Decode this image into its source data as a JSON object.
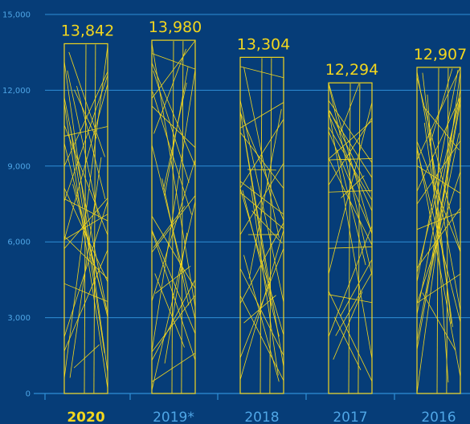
{
  "chart_data": {
    "type": "bar",
    "categories": [
      "2020",
      "2019*",
      "2018",
      "2017",
      "2016"
    ],
    "values": [
      13842,
      13980,
      13304,
      12294,
      12907
    ],
    "value_labels": [
      "13,842",
      "13,980",
      "13,304",
      "12,294",
      "12,907"
    ],
    "y_ticks": [
      "0",
      "3,000",
      "6,000",
      "9,000",
      "12,000",
      "15,000"
    ],
    "ylim": [
      0,
      15000
    ],
    "grid": true,
    "highlighted_category": "2020",
    "title": "",
    "xlabel": "",
    "ylabel": ""
  },
  "colors": {
    "background": "#063d78",
    "bar_stroke": "#f2d61e",
    "value_label": "#f2d61e",
    "highlight_label": "#f2d61e",
    "category_label": "#4fa6e6",
    "tick_label": "#4fa6e6",
    "grid": "#2f8fd6",
    "axis": "#2f8fd6"
  }
}
